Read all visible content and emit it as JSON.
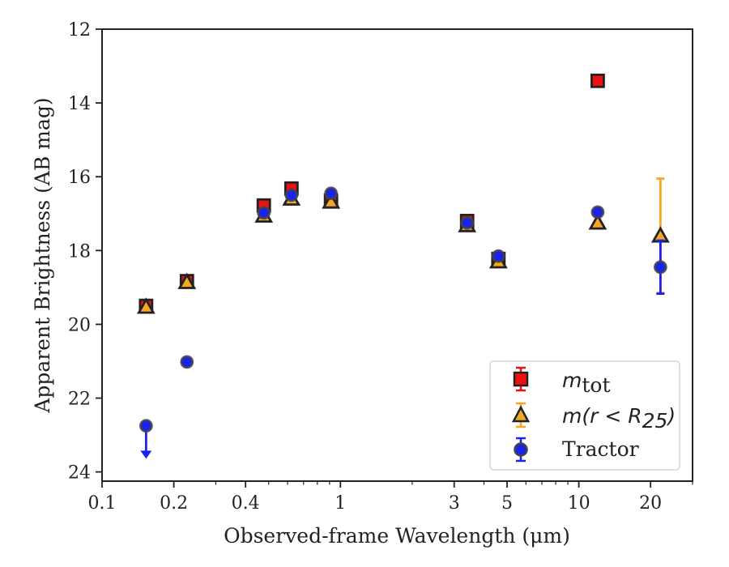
{
  "chart_data": {
    "type": "scatter",
    "xlabel": "Observed-frame Wavelength (μm)",
    "ylabel": "Apparent Brightness (AB mag)",
    "xscale": "log",
    "xlim": [
      0.1,
      30
    ],
    "ylim": [
      24.25,
      12
    ],
    "y_inverted": true,
    "x_ticks": [
      0.1,
      0.2,
      0.4,
      1,
      3,
      5,
      10,
      20
    ],
    "x_tick_labels": [
      "0.1",
      "0.2",
      "0.4",
      "1",
      "3",
      "5",
      "10",
      "20"
    ],
    "y_ticks": [
      12,
      14,
      16,
      18,
      20,
      22,
      24
    ],
    "y_tick_labels": [
      "12",
      "14",
      "16",
      "18",
      "20",
      "22",
      "24"
    ],
    "legend_position": "lower-right",
    "series": [
      {
        "name": "m_tot",
        "label_main": "m",
        "label_sub": "tot",
        "marker": "square",
        "color": "#ee1111",
        "edge_color": "#222222",
        "points": [
          {
            "x": 0.153,
            "y": 19.5,
            "err": 0.05
          },
          {
            "x": 0.227,
            "y": 18.83,
            "err": 0.05
          },
          {
            "x": 0.477,
            "y": 16.78,
            "err": 0.05
          },
          {
            "x": 0.623,
            "y": 16.32,
            "err": 0.05
          },
          {
            "x": 0.913,
            "y": 16.65,
            "err": 0.05
          },
          {
            "x": 3.4,
            "y": 17.2,
            "err": 0.05
          },
          {
            "x": 4.6,
            "y": 18.23,
            "err": 0.05
          },
          {
            "x": 12.0,
            "y": 13.4,
            "err": 0.05
          }
        ]
      },
      {
        "name": "m(r < R25)",
        "label_text": "m(r < R",
        "label_sub": "25",
        "label_close": ")",
        "marker": "triangle",
        "color": "#f5a623",
        "edge_color": "#222222",
        "points": [
          {
            "x": 0.153,
            "y": 19.53,
            "err": 0.05
          },
          {
            "x": 0.227,
            "y": 18.86,
            "err": 0.05
          },
          {
            "x": 0.477,
            "y": 17.06,
            "err": 0.05
          },
          {
            "x": 0.623,
            "y": 16.6,
            "err": 0.05
          },
          {
            "x": 0.913,
            "y": 16.68,
            "err": 0.05
          },
          {
            "x": 3.4,
            "y": 17.32,
            "err": 0.05
          },
          {
            "x": 4.6,
            "y": 18.3,
            "err": 0.05
          },
          {
            "x": 12.0,
            "y": 17.25,
            "err": 0.05
          },
          {
            "x": 22.0,
            "y": 17.6,
            "err": 1.55
          }
        ]
      },
      {
        "name": "Tractor",
        "label_text": "Tractor",
        "marker": "circle",
        "color": "#1a22ee",
        "edge_color": "#444444",
        "points": [
          {
            "x": 0.153,
            "y": 22.75,
            "upper_limit": true,
            "arrow_to": 23.6
          },
          {
            "x": 0.227,
            "y": 21.02,
            "err": 0.05
          },
          {
            "x": 0.477,
            "y": 16.98,
            "err": 0.05
          },
          {
            "x": 0.623,
            "y": 16.5,
            "err": 0.05
          },
          {
            "x": 0.913,
            "y": 16.45,
            "err": 0.05
          },
          {
            "x": 3.4,
            "y": 17.25,
            "err": 0.05
          },
          {
            "x": 4.6,
            "y": 18.15,
            "err": 0.05
          },
          {
            "x": 12.0,
            "y": 16.96,
            "err": 0.05
          },
          {
            "x": 22.0,
            "y": 18.45,
            "err": 0.72
          }
        ]
      }
    ]
  }
}
